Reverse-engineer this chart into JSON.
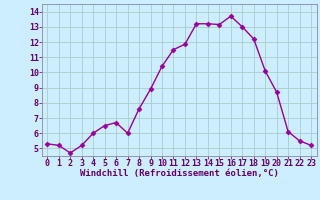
{
  "x": [
    0,
    1,
    2,
    3,
    4,
    5,
    6,
    7,
    8,
    9,
    10,
    11,
    12,
    13,
    14,
    15,
    16,
    17,
    18,
    19,
    20,
    21,
    22,
    23
  ],
  "y": [
    5.3,
    5.2,
    4.7,
    5.2,
    6.0,
    6.5,
    6.7,
    6.0,
    7.6,
    8.9,
    10.4,
    11.5,
    11.85,
    13.2,
    13.2,
    13.15,
    13.7,
    13.0,
    12.2,
    10.1,
    8.7,
    6.1,
    5.5,
    5.2
  ],
  "line_color": "#990099",
  "marker": "D",
  "markersize": 2.5,
  "linewidth": 1.0,
  "bg_color": "#cceeff",
  "grid_color": "#aacccc",
  "xlabel": "Windchill (Refroidissement éolien,°C)",
  "xlabel_color": "#660066",
  "xlabel_fontsize": 6.5,
  "xtick_labels": [
    "0",
    "1",
    "2",
    "3",
    "4",
    "5",
    "6",
    "7",
    "8",
    "9",
    "10",
    "11",
    "12",
    "13",
    "14",
    "15",
    "16",
    "17",
    "18",
    "19",
    "20",
    "21",
    "22",
    "23"
  ],
  "ytick_labels": [
    "5",
    "6",
    "7",
    "8",
    "9",
    "10",
    "11",
    "12",
    "13",
    "14"
  ],
  "ytick_vals": [
    5,
    6,
    7,
    8,
    9,
    10,
    11,
    12,
    13,
    14
  ],
  "ylim": [
    4.5,
    14.5
  ],
  "xlim": [
    -0.5,
    23.5
  ],
  "tick_color": "#660066",
  "tick_fontsize": 6.0,
  "spine_color": "#8888aa"
}
